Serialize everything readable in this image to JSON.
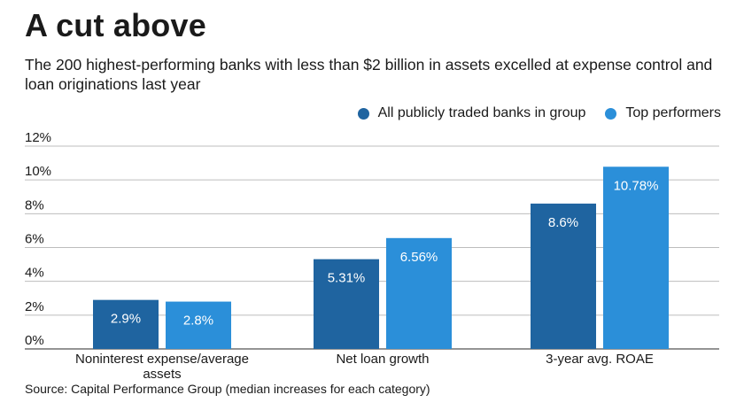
{
  "header": {
    "title": "A cut above",
    "subtitle": "The 200 highest-performing banks with less than $2 billion in assets excelled at expense control and loan originations last year"
  },
  "footer": {
    "source": "Source: Capital Performance Group (median increases for each category)"
  },
  "colors": {
    "series_all": "#1f64a0",
    "series_top": "#2b8fd9",
    "grid": "#bdbdbd",
    "axis": "#555555"
  },
  "chart_data": {
    "type": "bar",
    "categories": [
      "Noninterest expense/average assets",
      "Net loan growth",
      "3-year avg. ROAE"
    ],
    "category_lines": [
      [
        "Noninterest expense/average",
        "assets"
      ],
      [
        "Net loan growth"
      ],
      [
        "3-year avg. ROAE"
      ]
    ],
    "series": [
      {
        "name": "All publicly traded banks in group",
        "values": [
          2.9,
          5.31,
          8.6
        ],
        "labels": [
          "2.9%",
          "5.31%",
          "8.6%"
        ]
      },
      {
        "name": "Top performers",
        "values": [
          2.8,
          6.56,
          10.78
        ],
        "labels": [
          "2.8%",
          "6.56%",
          "10.78%"
        ]
      }
    ],
    "y_ticks": [
      0,
      2,
      4,
      6,
      8,
      10,
      12
    ],
    "y_tick_labels": [
      "0%",
      "2%",
      "4%",
      "6%",
      "8%",
      "10%",
      "12%"
    ],
    "ylim": [
      0,
      12
    ],
    "grid": true,
    "legend_position": "top-right"
  }
}
